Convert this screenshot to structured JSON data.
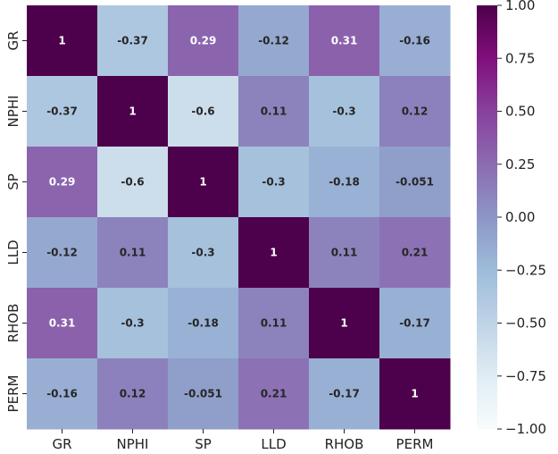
{
  "chart_data": {
    "type": "heatmap",
    "title": "",
    "xlabel": "",
    "ylabel": "",
    "variables": [
      "GR",
      "NPHI",
      "SP",
      "LLD",
      "RHOB",
      "PERM"
    ],
    "matrix": [
      [
        1,
        -0.37,
        0.29,
        -0.12,
        0.31,
        -0.16
      ],
      [
        -0.37,
        1,
        -0.6,
        0.11,
        -0.3,
        0.12
      ],
      [
        0.29,
        -0.6,
        1,
        -0.3,
        -0.18,
        -0.051
      ],
      [
        -0.12,
        0.11,
        -0.3,
        1,
        0.11,
        0.21
      ],
      [
        0.31,
        -0.3,
        -0.18,
        0.11,
        1,
        -0.17
      ],
      [
        -0.16,
        0.12,
        -0.051,
        0.21,
        -0.17,
        1
      ]
    ],
    "cell_labels": [
      [
        "1",
        "-0.37",
        "0.29",
        "-0.12",
        "0.31",
        "-0.16"
      ],
      [
        "-0.37",
        "1",
        "-0.6",
        "0.11",
        "-0.3",
        "0.12"
      ],
      [
        "0.29",
        "-0.6",
        "1",
        "-0.3",
        "-0.18",
        "-0.051"
      ],
      [
        "-0.12",
        "0.11",
        "-0.3",
        "1",
        "0.11",
        "0.21"
      ],
      [
        "0.31",
        "-0.3",
        "-0.18",
        "0.11",
        "1",
        "-0.17"
      ],
      [
        "-0.16",
        "0.12",
        "-0.051",
        "0.21",
        "-0.17",
        "1"
      ]
    ],
    "colorbar": {
      "range": [
        -1.0,
        1.0
      ],
      "ticks": [
        1.0,
        0.75,
        0.5,
        0.25,
        0.0,
        -0.25,
        -0.5,
        -0.75,
        -1.0
      ],
      "tick_labels": [
        "1.00",
        "0.75",
        "0.50",
        "0.25",
        "0.00",
        "−0.25",
        "−0.50",
        "−0.75",
        "−1.00"
      ],
      "colormap": "BuPu"
    },
    "colormap_stops": [
      "#f7fcfd",
      "#e0ecf4",
      "#bfd3e6",
      "#9ebcda",
      "#8c96c6",
      "#8c6bb1",
      "#88419d",
      "#810f7c",
      "#4d004b"
    ],
    "text_colors": {
      "dark": "#262626",
      "light": "#ffffff"
    }
  }
}
